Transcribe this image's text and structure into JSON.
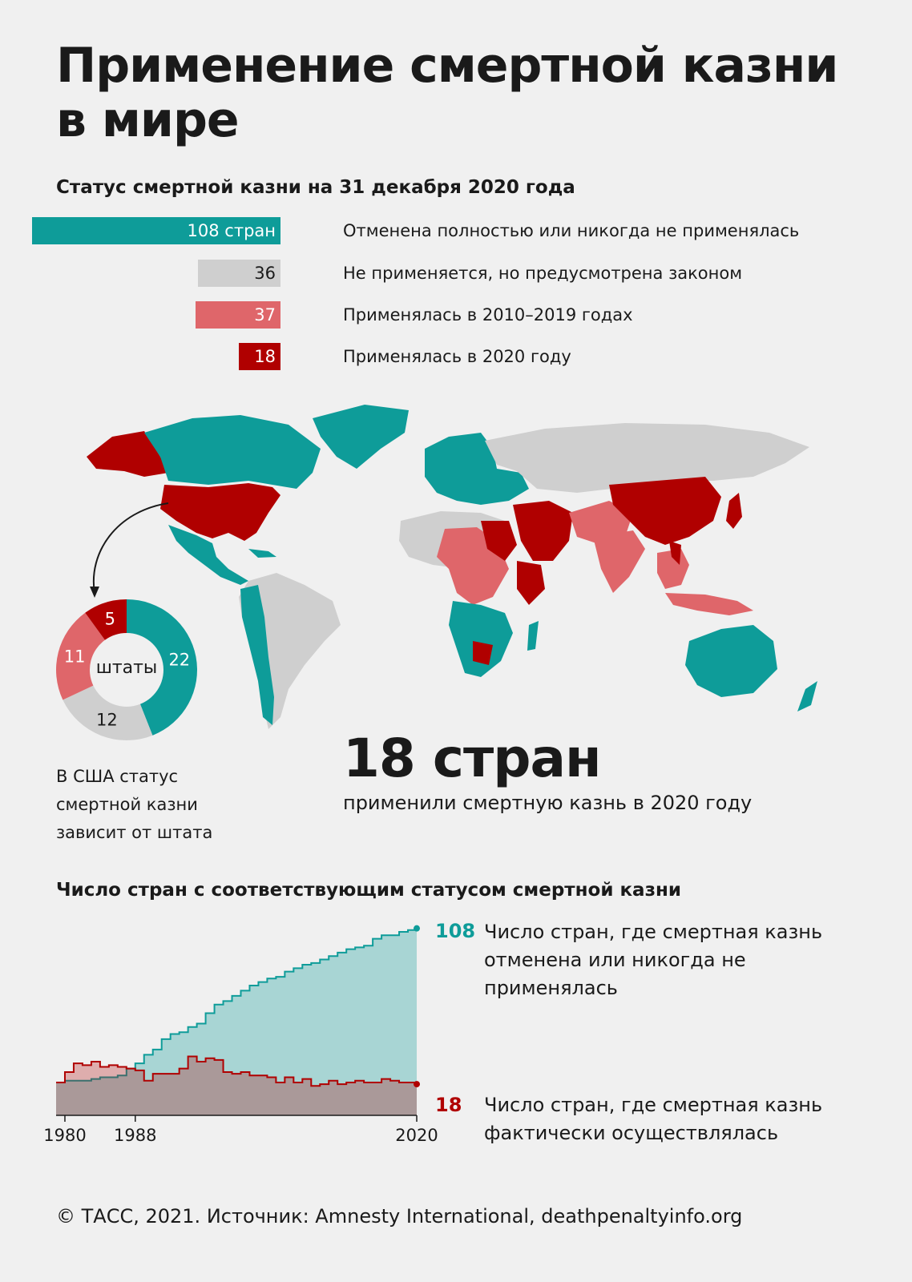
{
  "header": {
    "title_line1": "Применение смертной казни",
    "title_line2": "в мире",
    "status_subtitle": "Статус смертной казни на 31 декабря 2020 года"
  },
  "colors": {
    "abolished": "#0e9c99",
    "not_applied": "#cfcfcf",
    "applied_2010_2019": "#df666a",
    "applied_2020": "#b00000",
    "background": "#f0f0f0"
  },
  "status_legend": [
    {
      "value_label": "108 стран",
      "value": 108,
      "label": "Отменена полностью или никогда не применялась",
      "color": "#0e9c99",
      "text_color": "#ffffff"
    },
    {
      "value_label": "36",
      "value": 36,
      "label": "Не применяется, но предусмотрена законом",
      "color": "#cfcfcf",
      "text_color": "#1a1a1a"
    },
    {
      "value_label": "37",
      "value": 37,
      "label": "Применялась в 2010–2019 годах",
      "color": "#df666a",
      "text_color": "#ffffff"
    },
    {
      "value_label": "18",
      "value": 18,
      "label": "Применялась в 2020 году",
      "color": "#b00000",
      "text_color": "#ffffff"
    }
  ],
  "map": {
    "big_count": "18 стран",
    "big_caption": "применили смертную казнь в 2020 году"
  },
  "us_donut": {
    "center_label": "штаты",
    "note": "В США статус смертной казни зависит от штата",
    "segments": [
      {
        "value": 22,
        "label": "22",
        "color": "#0e9c99"
      },
      {
        "value": 12,
        "label": "12",
        "color": "#cfcfcf"
      },
      {
        "value": 11,
        "label": "11",
        "color": "#df666a"
      },
      {
        "value": 5,
        "label": "5",
        "color": "#b00000"
      }
    ]
  },
  "trend": {
    "subtitle": "Число стран с соответствующим статусом смертной казни",
    "abolished_end_value": "108",
    "abolished_label": "Число стран, где смертная казнь отменена или никогда не применялась",
    "executing_end_value": "18",
    "executing_label": "Число стран, где смертная казнь фактически осуществлялась"
  },
  "chart_data": [
    {
      "type": "bar",
      "title": "Статус смертной казни на 31 декабря 2020 года",
      "categories": [
        "Отменена полностью или никогда не применялась",
        "Не применяется, но предусмотрена законом",
        "Применялась в 2010–2019 годах",
        "Применялась в 2020 году"
      ],
      "values": [
        108,
        36,
        37,
        18
      ]
    },
    {
      "type": "pie",
      "categories": [
        "Отменена",
        "Не применяется",
        "Применялась в 2010–2019 годах",
        "Применялась в 2020 году"
      ],
      "values": [
        22,
        12,
        11,
        5
      ]
    },
    {
      "type": "area",
      "title": "Число стран с соответствующим статусом смертной казни",
      "x_ticks": [
        "1980",
        "1988",
        "2020"
      ],
      "x": [
        1979,
        1980,
        1981,
        1982,
        1983,
        1984,
        1985,
        1986,
        1987,
        1988,
        1989,
        1990,
        1991,
        1992,
        1993,
        1994,
        1995,
        1996,
        1997,
        1998,
        1999,
        2000,
        2001,
        2002,
        2003,
        2004,
        2005,
        2006,
        2007,
        2008,
        2009,
        2010,
        2011,
        2012,
        2013,
        2014,
        2015,
        2016,
        2017,
        2018,
        2019,
        2020
      ],
      "ylim": [
        0,
        112
      ],
      "series": [
        {
          "name": "Число стран, где смертная казнь отменена или никогда не применялась",
          "values": [
            19,
            20,
            20,
            20,
            21,
            22,
            22,
            23,
            27,
            30,
            35,
            38,
            44,
            47,
            48,
            51,
            53,
            59,
            64,
            66,
            69,
            72,
            75,
            77,
            79,
            80,
            83,
            85,
            87,
            88,
            90,
            92,
            94,
            96,
            97,
            98,
            102,
            104,
            104,
            106,
            107,
            108
          ]
        },
        {
          "name": "Число стран, где смертная казнь фактически осуществлялась",
          "values": [
            19,
            25,
            30,
            29,
            31,
            28,
            29,
            28,
            27,
            26,
            20,
            24,
            24,
            24,
            27,
            34,
            31,
            33,
            32,
            25,
            24,
            25,
            23,
            23,
            22,
            19,
            22,
            19,
            21,
            17,
            18,
            20,
            18,
            19,
            20,
            19,
            19,
            21,
            20,
            19,
            19,
            18
          ]
        }
      ]
    }
  ],
  "footer": "© ТАСС, 2021. Источник: Amnesty International, deathpenaltyinfo.org"
}
